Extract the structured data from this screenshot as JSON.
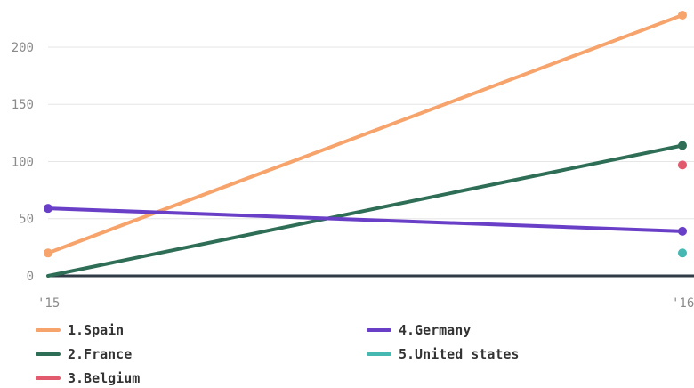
{
  "chart_data": {
    "type": "line",
    "x": [
      "'15",
      "'16"
    ],
    "ylim": [
      0,
      230
    ],
    "yticks": [
      0,
      50,
      100,
      150,
      200
    ],
    "grid": true,
    "legend_position": "bottom",
    "series": [
      {
        "name": "1.Spain",
        "values": [
          20,
          228
        ],
        "color": "#f7a36c"
      },
      {
        "name": "2.France",
        "values": [
          0,
          114
        ],
        "color": "#2e6e57"
      },
      {
        "name": "3.Belgium",
        "values": [
          null,
          97
        ],
        "color": "#e25a6e"
      },
      {
        "name": "4.Germany",
        "values": [
          59,
          39
        ],
        "color": "#6a3fc8"
      },
      {
        "name": "5.United states",
        "values": [
          null,
          20
        ],
        "color": "#45b8b2"
      }
    ]
  }
}
